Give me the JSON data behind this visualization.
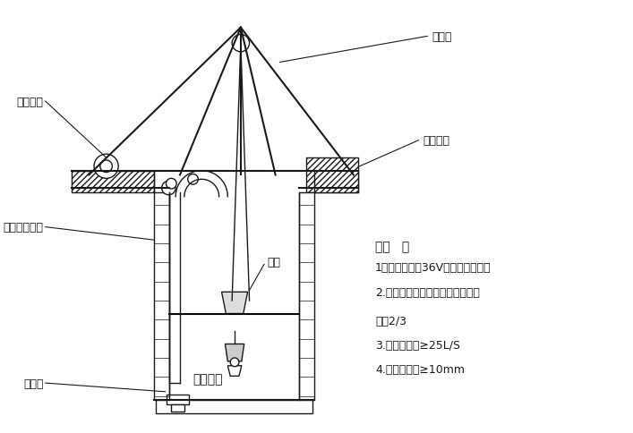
{
  "bg_color": "#ffffff",
  "line_color": "#1a1a1a",
  "hatch_color": "#555555",
  "title_fontsize": 10,
  "label_fontsize": 9,
  "notes_title": "说明   ：",
  "notes": [
    "1：孔内照明为36V低电压电灯灯泡",
    "2.吊桶为皮桶，一次装土量不超过",
    "容量2/3",
    "3.孔内送风量≥25L/S",
    "4.钢丝绳直径≥10mm"
  ],
  "labels": {
    "steel_pipe": "钢架管",
    "brick_ring": "砖砌井圈",
    "electric_hoist": "电动葫芦",
    "fan_duct": "风机及送风管",
    "bucket": "吊桶",
    "light_fixture": "照明灯具",
    "submersible_pump": "潜水泵"
  }
}
